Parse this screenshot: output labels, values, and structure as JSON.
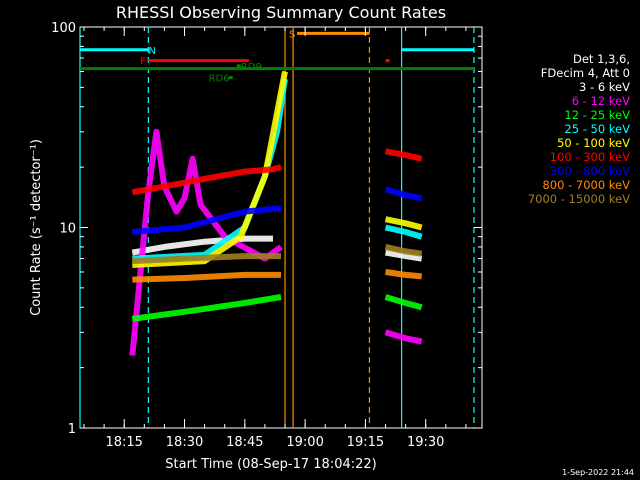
{
  "chart_data": {
    "type": "line",
    "title": "RHESSI Observing Summary Count Rates",
    "xlabel": "Start Time (08-Sep-17 18:04:22)",
    "ylabel": "Count Rate (s⁻¹ detector⁻¹)",
    "yscale": "log",
    "ylim": [
      1,
      100
    ],
    "y_ticks": [
      {
        "value": 1,
        "label": "1"
      },
      {
        "value": 10,
        "label": "10"
      },
      {
        "value": 100,
        "label": "100"
      }
    ],
    "xlim": [
      "18:04",
      "19:44"
    ],
    "x_ticks": [
      "18:15",
      "18:30",
      "18:45",
      "19:00",
      "19:15",
      "19:30"
    ],
    "grid": false,
    "legend_position": "right",
    "legend_header": [
      "Det 1,3,6,",
      "FDecim 4, Att 0"
    ],
    "series": [
      {
        "name": "3 - 6 keV",
        "color": "#ffffff",
        "segments": [
          [
            [
              "18:17",
              7.5
            ],
            [
              "18:25",
              8.0
            ],
            [
              "18:35",
              8.5
            ],
            [
              "18:45",
              8.8
            ],
            [
              "18:52",
              8.8
            ]
          ],
          [
            [
              "19:20",
              7.5
            ],
            [
              "19:25",
              7.2
            ],
            [
              "19:29",
              7.0
            ]
          ]
        ]
      },
      {
        "name": "6 - 12 keV",
        "color": "#ff00ff",
        "segments": [
          [
            [
              "18:17",
              2.3
            ],
            [
              "18:21",
              15
            ],
            [
              "18:23",
              30
            ],
            [
              "18:25",
              16
            ],
            [
              "18:28",
              12
            ],
            [
              "18:30",
              14
            ],
            [
              "18:32",
              22
            ],
            [
              "18:34",
              13
            ],
            [
              "18:40",
              9
            ],
            [
              "18:50",
              7
            ],
            [
              "18:54",
              8
            ]
          ],
          [
            [
              "19:20",
              3.0
            ],
            [
              "19:25",
              2.8
            ],
            [
              "19:29",
              2.7
            ]
          ]
        ]
      },
      {
        "name": "12 - 25 keV",
        "color": "#00ff00",
        "segments": [
          [
            [
              "18:17",
              3.5
            ],
            [
              "18:30",
              3.8
            ],
            [
              "18:45",
              4.2
            ],
            [
              "18:54",
              4.5
            ]
          ],
          [
            [
              "19:20",
              4.5
            ],
            [
              "19:25",
              4.2
            ],
            [
              "19:29",
              4.0
            ]
          ]
        ]
      },
      {
        "name": "25 - 50 keV",
        "color": "#00ffff",
        "segments": [
          [
            [
              "18:17",
              7.0
            ],
            [
              "18:35",
              7.3
            ],
            [
              "18:45",
              10
            ],
            [
              "18:50",
              18
            ],
            [
              "18:53",
              30
            ],
            [
              "18:55",
              55
            ]
          ],
          [
            [
              "19:20",
              10
            ],
            [
              "19:25",
              9.5
            ],
            [
              "19:29",
              9.0
            ]
          ]
        ]
      },
      {
        "name": "50 - 100 keV",
        "color": "#ffff00",
        "segments": [
          [
            [
              "18:17",
              6.5
            ],
            [
              "18:35",
              6.8
            ],
            [
              "18:44",
              9
            ],
            [
              "18:50",
              18
            ],
            [
              "18:55",
              60
            ]
          ],
          [
            [
              "19:20",
              11
            ],
            [
              "19:25",
              10.5
            ],
            [
              "19:29",
              10
            ]
          ]
        ]
      },
      {
        "name": "100 - 300 keV",
        "color": "#ff0000",
        "segments": [
          [
            [
              "18:17",
              15
            ],
            [
              "18:25",
              16
            ],
            [
              "18:35",
              17.5
            ],
            [
              "18:45",
              19
            ],
            [
              "18:52",
              19.5
            ],
            [
              "18:54",
              20
            ]
          ],
          [
            [
              "19:20",
              24
            ],
            [
              "19:25",
              23
            ],
            [
              "19:29",
              22
            ]
          ]
        ]
      },
      {
        "name": "300 - 800 keV",
        "color": "#0000ff",
        "segments": [
          [
            [
              "18:17",
              9.5
            ],
            [
              "18:30",
              10
            ],
            [
              "18:45",
              12
            ],
            [
              "18:54",
              12.5
            ]
          ],
          [
            [
              "19:20",
              15.5
            ],
            [
              "19:25",
              14.5
            ],
            [
              "19:29",
              14
            ]
          ]
        ]
      },
      {
        "name": "800 - 7000 keV",
        "color": "#ff8c00",
        "segments": [
          [
            [
              "18:17",
              5.5
            ],
            [
              "18:30",
              5.6
            ],
            [
              "18:45",
              5.8
            ],
            [
              "18:54",
              5.8
            ]
          ],
          [
            [
              "19:20",
              6.0
            ],
            [
              "19:25",
              5.8
            ],
            [
              "19:29",
              5.7
            ]
          ]
        ]
      },
      {
        "name": "7000 - 15000 keV",
        "color": "#a08020",
        "segments": [
          [
            [
              "18:17",
              6.8
            ],
            [
              "18:30",
              7.0
            ],
            [
              "18:45",
              7.2
            ],
            [
              "18:54",
              7.2
            ]
          ],
          [
            [
              "19:20",
              8.0
            ],
            [
              "19:25",
              7.6
            ],
            [
              "19:29",
              7.4
            ]
          ]
        ]
      }
    ],
    "flags": [
      {
        "label": "N",
        "color": "#00ffff",
        "value": 77,
        "ranges": [
          [
            "18:04",
            "18:21"
          ],
          [
            "19:24",
            "19:42"
          ]
        ],
        "label_at": "18:21"
      },
      {
        "label": "F",
        "color": "#ff0000",
        "value": 68,
        "ranges": [
          [
            "18:21",
            "18:46"
          ],
          [
            "19:20",
            "19:21"
          ]
        ],
        "label_at": "18:19"
      },
      {
        "label": "RD9",
        "color": "#008000",
        "value": 64,
        "ranges": [
          [
            "18:43",
            "18:44"
          ]
        ],
        "label_at": "18:44"
      },
      {
        "label": "RD6",
        "color": "#008000",
        "value": 56,
        "ranges": [
          [
            "18:41",
            "18:42"
          ]
        ],
        "label_at": "18:36"
      },
      {
        "label": "S",
        "color": "#ff8c00",
        "value": 93,
        "ranges": [
          [
            "18:58",
            "19:16"
          ]
        ],
        "label_at": "18:56"
      }
    ],
    "reference_line": {
      "color": "#008000",
      "value": 62,
      "range": [
        "18:04",
        "19:42"
      ]
    },
    "vertical_markers": [
      {
        "time": "18:04",
        "color": "#00ffff",
        "style": "solid"
      },
      {
        "time": "18:21",
        "color": "#00ffff",
        "style": "dashed"
      },
      {
        "time": "18:55",
        "color": "#ff8c00",
        "style": "solid"
      },
      {
        "time": "18:57",
        "color": "#ff8c00",
        "style": "solid"
      },
      {
        "time": "19:16",
        "color": "#ff8c00",
        "style": "dashed"
      },
      {
        "time": "19:24",
        "color": "#00ffff",
        "style": "solid"
      },
      {
        "time": "19:42",
        "color": "#00ffff",
        "style": "dashed"
      }
    ]
  },
  "footer": {
    "stamp": "1-Sep-2022 21:44"
  }
}
